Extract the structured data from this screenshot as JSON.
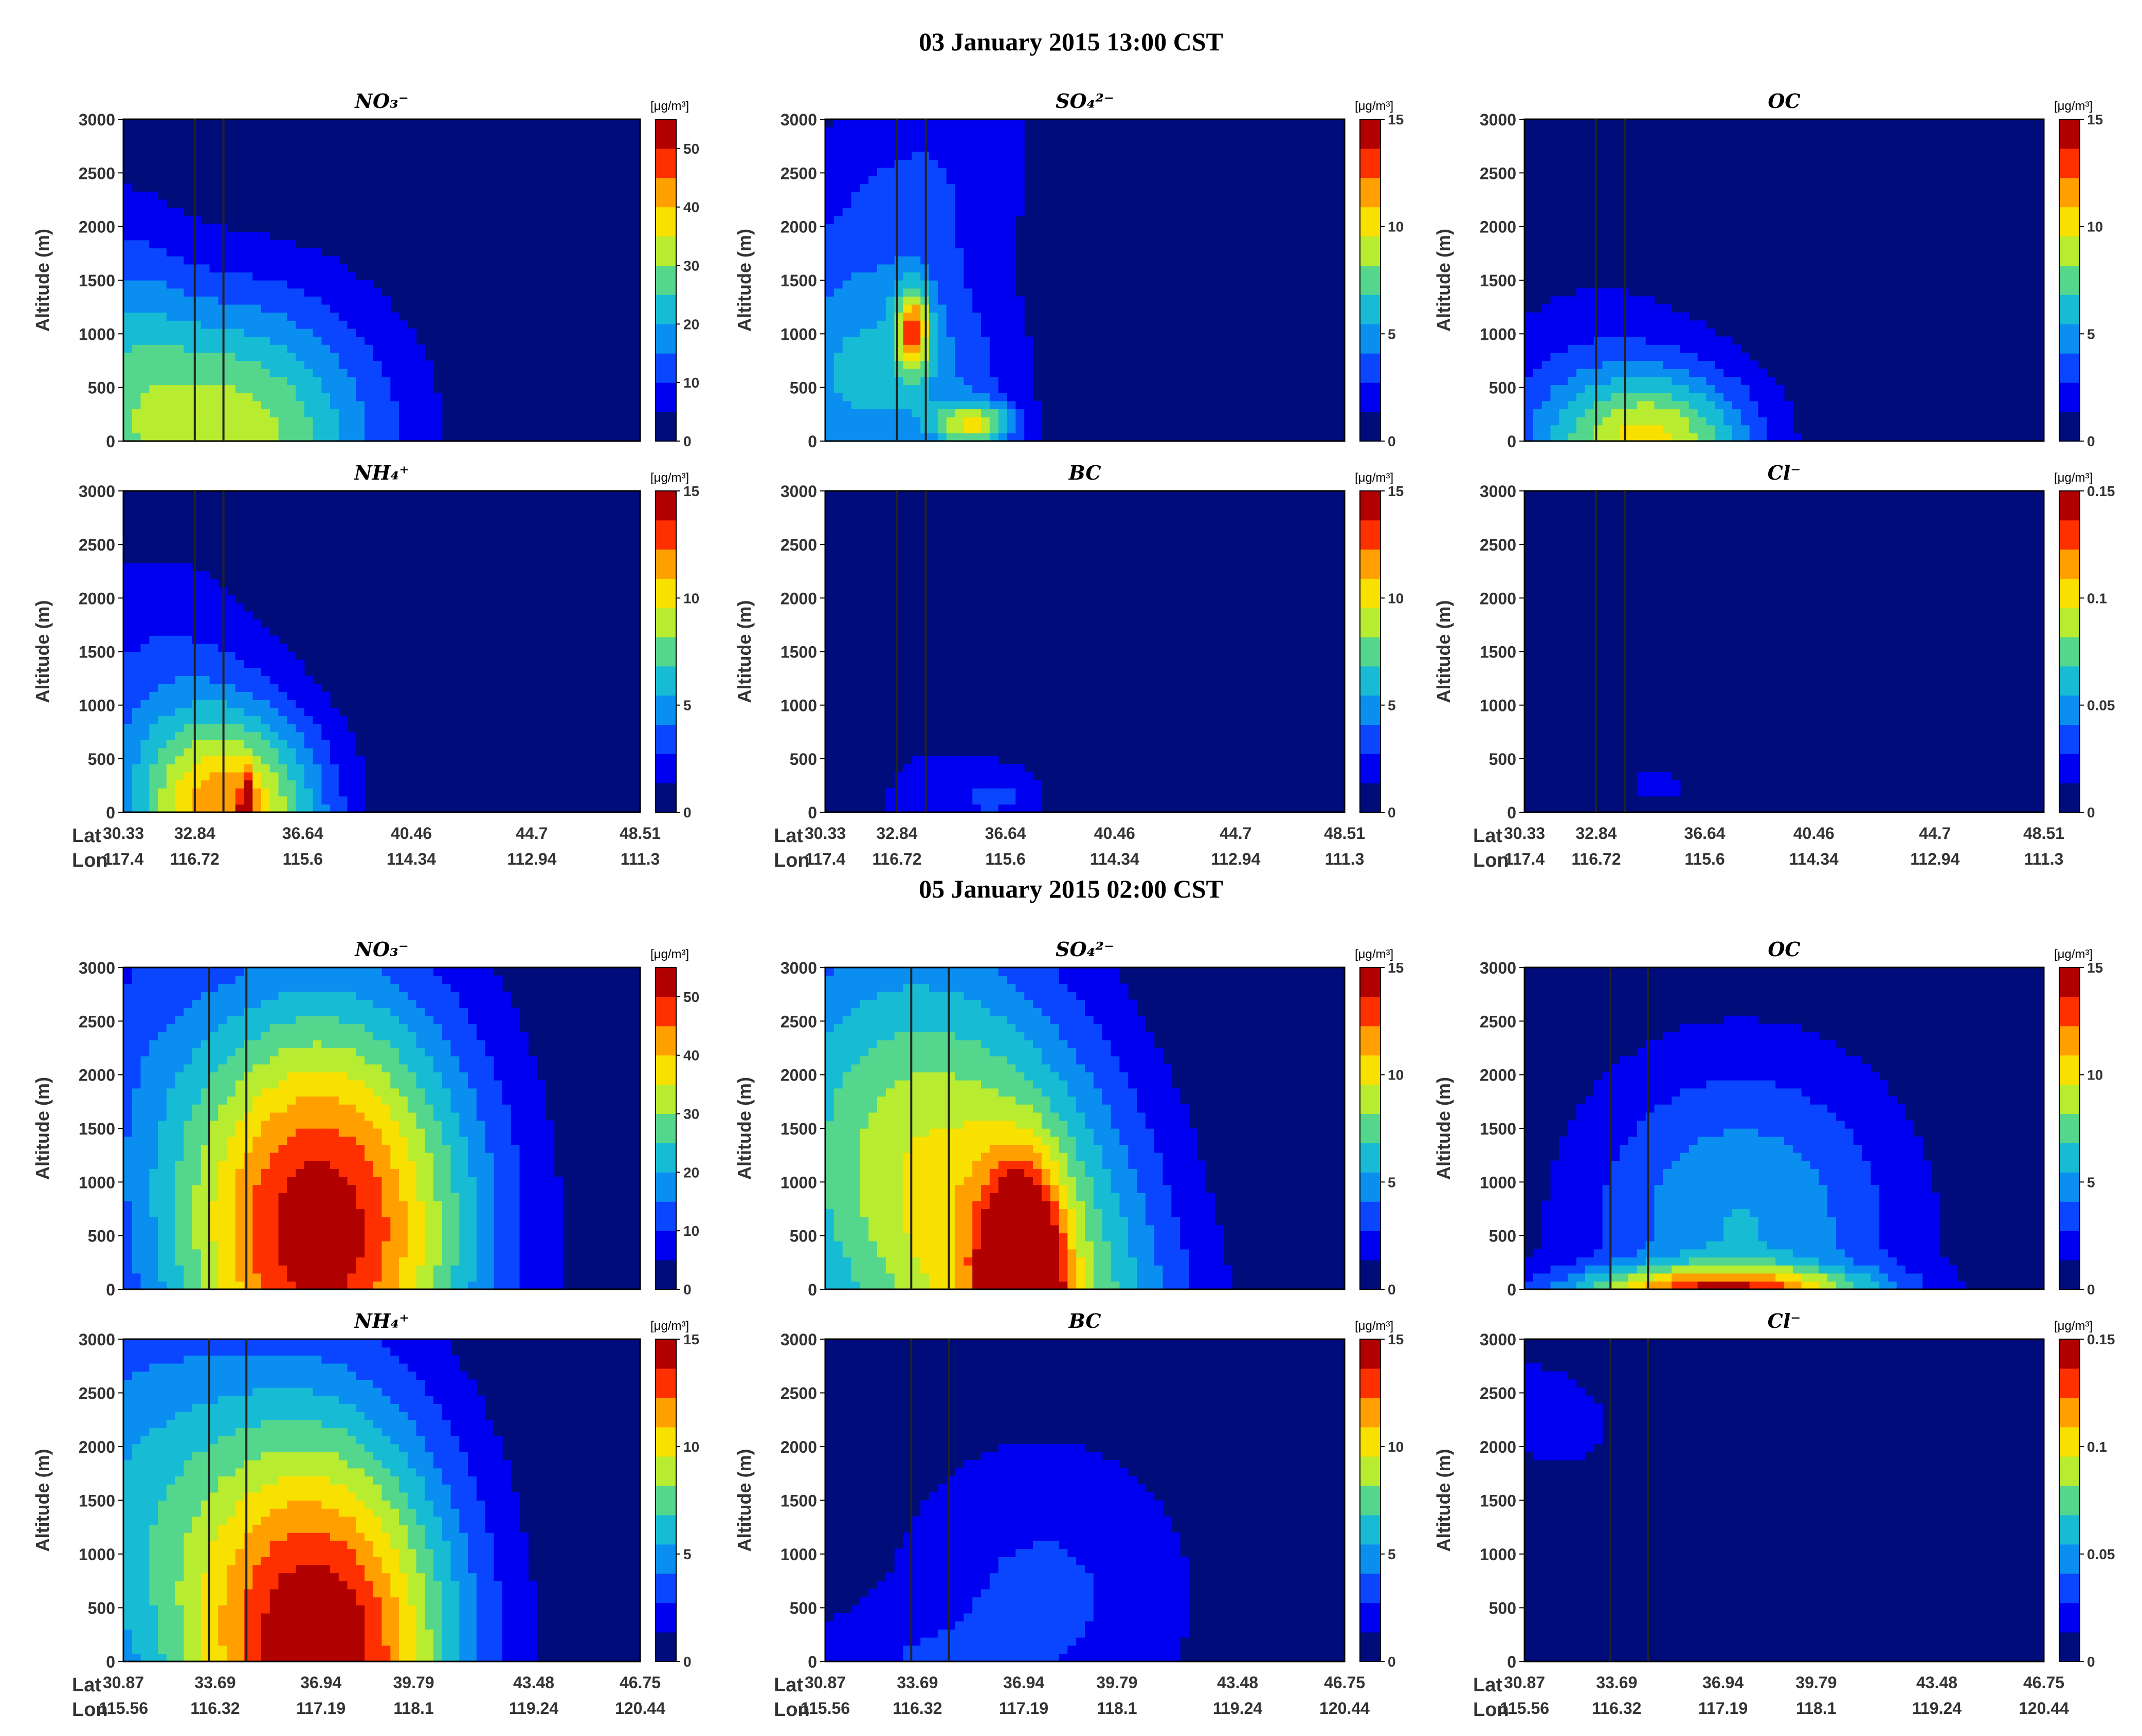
{
  "sections": [
    {
      "title": "03 January 2015 13:00 CST",
      "lat_ticks": [
        "30.33",
        "32.84",
        "36.64",
        "40.46",
        "44.7",
        "48.51"
      ],
      "lon_ticks": [
        "117.4",
        "116.72",
        "115.6",
        "114.34",
        "112.94",
        "111.3"
      ]
    },
    {
      "title": "05 January 2015 02:00 CST",
      "lat_ticks": [
        "30.87",
        "33.69",
        "36.94",
        "39.79",
        "43.48",
        "46.75"
      ],
      "lon_ticks": [
        "115.56",
        "116.32",
        "117.19",
        "118.1",
        "119.24",
        "120.44"
      ]
    }
  ],
  "axis": {
    "ylabel": "Altitude (m)",
    "lat_label": "Lat",
    "lon_label": "Lon",
    "unit": "[μg/m³]"
  },
  "chart_data": {
    "type": "heatmap",
    "ylim": [
      0,
      3000
    ],
    "yticks": [
      0,
      500,
      1000,
      1500,
      2000,
      2500,
      3000
    ],
    "species": [
      {
        "id": "no3",
        "label": "NO₃⁻",
        "vmax": 55,
        "cbar_ticks": [
          "0",
          "10",
          "20",
          "30",
          "40",
          "50"
        ]
      },
      {
        "id": "so4",
        "label": "SO₄²⁻",
        "vmax": 15,
        "cbar_ticks": [
          "0",
          "5",
          "10",
          "15"
        ]
      },
      {
        "id": "oc",
        "label": "OC",
        "vmax": 15,
        "cbar_ticks": [
          "0",
          "5",
          "10",
          "15"
        ]
      },
      {
        "id": "nh4",
        "label": "NH₄⁺",
        "vmax": 15,
        "cbar_ticks": [
          "0",
          "5",
          "10",
          "15"
        ]
      },
      {
        "id": "bc",
        "label": "BC",
        "vmax": 15,
        "cbar_ticks": [
          "0",
          "5",
          "10",
          "15"
        ]
      },
      {
        "id": "cl",
        "label": "Cl⁻",
        "vmax": 0.15,
        "cbar_ticks": [
          "0",
          "0.05",
          "0.1",
          "0.15"
        ]
      }
    ],
    "panels": [
      {
        "section": 0,
        "species": 0,
        "marker_lat": [
          32.84,
          33.85
        ],
        "plumes": [
          {
            "lat": 33.8,
            "alt": 0,
            "peak": 34,
            "sigma_lat": 4.0,
            "alt_top": 2000,
            "tilt": 0
          },
          {
            "lat": 30.3,
            "alt": 1100,
            "peak": 8,
            "sigma_lat": 1.5,
            "alt_top": 2000,
            "tilt": 0
          }
        ]
      },
      {
        "section": 0,
        "species": 1,
        "marker_lat": [
          32.84,
          33.85
        ],
        "plumes": [
          {
            "lat": 32.0,
            "alt": 1500,
            "peak": 3.5,
            "sigma_lat": 3.2,
            "alt_top": 3300,
            "tilt": 0.0014
          },
          {
            "lat": 33.4,
            "alt": 1050,
            "peak": 8.5,
            "sigma_lat": 0.4,
            "alt_top": 550,
            "tilt": 0
          },
          {
            "lat": 35.6,
            "alt": 150,
            "peak": 7.5,
            "sigma_lat": 1.0,
            "alt_top": 300,
            "tilt": 0
          },
          {
            "lat": 33.0,
            "alt": 500,
            "peak": 3.5,
            "sigma_lat": 3.0,
            "alt_top": 1200,
            "tilt": 0
          }
        ]
      },
      {
        "section": 0,
        "species": 2,
        "marker_lat": [
          32.84,
          33.85
        ],
        "plumes": [
          {
            "lat": 34.8,
            "alt": 0,
            "peak": 7.5,
            "sigma_lat": 2.5,
            "alt_top": 900,
            "tilt": 0
          },
          {
            "lat": 33.0,
            "alt": 0,
            "peak": 3.0,
            "sigma_lat": 3.5,
            "alt_top": 2200,
            "tilt": 0
          }
        ]
      },
      {
        "section": 0,
        "species": 3,
        "marker_lat": [
          32.84,
          33.85
        ],
        "plumes": [
          {
            "lat": 34.0,
            "alt": 0,
            "peak": 11,
            "sigma_lat": 2.4,
            "alt_top": 1350,
            "tilt": 0
          },
          {
            "lat": 34.7,
            "alt": 0,
            "peak": 13.5,
            "sigma_lat": 0.15,
            "alt_top": 400,
            "tilt": 0
          },
          {
            "lat": 31.5,
            "alt": 1200,
            "peak": 2.6,
            "sigma_lat": 3.0,
            "alt_top": 2000,
            "tilt": 0
          }
        ]
      },
      {
        "section": 0,
        "species": 4,
        "marker_lat": [
          32.84,
          33.85
        ],
        "plumes": [
          {
            "lat": 36.5,
            "alt": 150,
            "peak": 2.0,
            "sigma_lat": 1.2,
            "alt_top": 400,
            "tilt": 0
          },
          {
            "lat": 34.0,
            "alt": 0,
            "peak": 1.6,
            "sigma_lat": 2.6,
            "alt_top": 1800,
            "tilt": 0
          }
        ]
      },
      {
        "section": 0,
        "species": 5,
        "marker_lat": [
          32.84,
          33.85
        ],
        "plumes": [
          {
            "lat": 35.0,
            "alt": 250,
            "peak": 0.02,
            "sigma_lat": 0.9,
            "alt_top": 300,
            "tilt": 0
          },
          {
            "lat": 39.2,
            "alt": 150,
            "peak": 0.013,
            "sigma_lat": 0.5,
            "alt_top": 200,
            "tilt": 0
          }
        ]
      },
      {
        "section": 1,
        "species": 0,
        "marker_lat": [
          33.5,
          34.65
        ],
        "plumes": [
          {
            "lat": 36.9,
            "alt": 550,
            "peak": 54,
            "sigma_lat": 3.4,
            "alt_top": 3200,
            "tilt": 0
          },
          {
            "lat": 30.9,
            "alt": 2500,
            "peak": 6,
            "sigma_lat": 2.0,
            "alt_top": 3000,
            "tilt": 0
          }
        ]
      },
      {
        "section": 1,
        "species": 1,
        "marker_lat": [
          33.5,
          34.65
        ],
        "plumes": [
          {
            "lat": 36.9,
            "alt": 0,
            "peak": 14,
            "sigma_lat": 0.8,
            "alt_top": 1400,
            "tilt": 0
          },
          {
            "lat": 36.9,
            "alt": 0,
            "peak": 10,
            "sigma_lat": 3.2,
            "alt_top": 4000,
            "tilt": -0.0005
          },
          {
            "lat": 31.5,
            "alt": 1200,
            "peak": 5,
            "sigma_lat": 3.0,
            "alt_top": 3200,
            "tilt": 0
          }
        ]
      },
      {
        "section": 1,
        "species": 2,
        "marker_lat": [
          33.5,
          34.65
        ],
        "plumes": [
          {
            "lat": 37.5,
            "alt": 600,
            "peak": 5.5,
            "sigma_lat": 3.6,
            "alt_top": 2300,
            "tilt": 0
          },
          {
            "lat": 36.8,
            "alt": 0,
            "peak": 9.5,
            "sigma_lat": 3.2,
            "alt_top": 300,
            "tilt": 0
          }
        ]
      },
      {
        "section": 1,
        "species": 3,
        "marker_lat": [
          33.5,
          34.65
        ],
        "plumes": [
          {
            "lat": 37.0,
            "alt": 0,
            "peak": 15,
            "sigma_lat": 3.0,
            "alt_top": 3300,
            "tilt": 0
          },
          {
            "lat": 31.0,
            "alt": 1500,
            "peak": 4.5,
            "sigma_lat": 3.2,
            "alt_top": 3300,
            "tilt": 0
          }
        ]
      },
      {
        "section": 1,
        "species": 4,
        "marker_lat": [
          33.5,
          34.65
        ],
        "plumes": [
          {
            "lat": 37.5,
            "alt": 600,
            "peak": 3.0,
            "sigma_lat": 3.6,
            "alt_top": 2300,
            "tilt": 0
          },
          {
            "lat": 32.0,
            "alt": 0,
            "peak": 1.6,
            "sigma_lat": 2.5,
            "alt_top": 700,
            "tilt": 0
          }
        ]
      },
      {
        "section": 1,
        "species": 5,
        "marker_lat": [
          33.5,
          34.65
        ],
        "plumes": [
          {
            "lat": 31.5,
            "alt": 2300,
            "peak": 0.018,
            "sigma_lat": 2.3,
            "alt_top": 1200,
            "tilt": -0.0012
          },
          {
            "lat": 46.5,
            "alt": 0,
            "peak": 0.01,
            "sigma_lat": 0.7,
            "alt_top": 250,
            "tilt": 0
          }
        ]
      }
    ]
  }
}
